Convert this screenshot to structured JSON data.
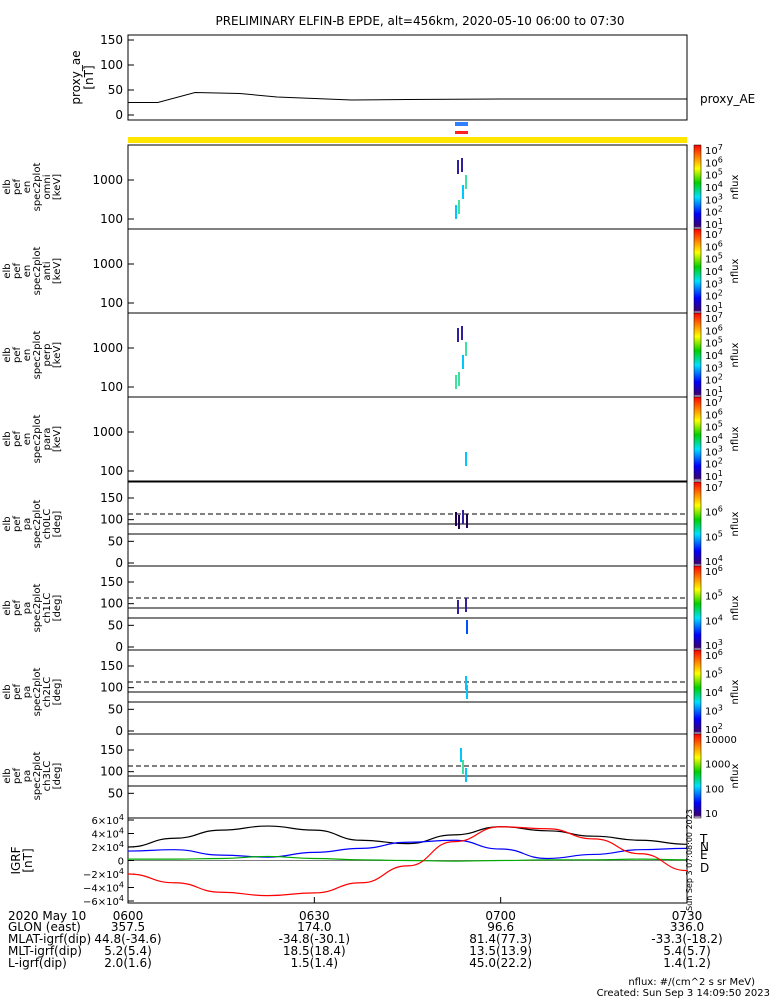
{
  "title": "PRELIMINARY ELFIN-B EPDE, alt=456km, 2020-05-10 06:00 to 07:30",
  "colors": {
    "line": "#000000",
    "status_yellow": "#FFE600",
    "blue_bar": "#2F7FFF",
    "red_bar": "#FF2020"
  },
  "chart_data": [
    {
      "type": "line",
      "panel": "proxy_ae",
      "ylabel": [
        "proxy_ae",
        "[nT]"
      ],
      "legend": "proxy_AE",
      "yticks": [
        "150",
        "100",
        "50",
        "0"
      ],
      "ylim": [
        0,
        150
      ],
      "x_hours": [
        6.0,
        6.08,
        6.18,
        6.3,
        6.4,
        6.5,
        6.6,
        6.75,
        7.0,
        7.5
      ],
      "values": [
        25,
        25,
        45,
        43,
        36,
        33,
        30,
        31,
        32,
        32
      ]
    },
    {
      "type": "heatmap",
      "panel": "omni",
      "ylabel": [
        "elb",
        "pef",
        "en",
        "spec2plot",
        "omni",
        "[keV]"
      ],
      "yticks": [
        "1000",
        "100"
      ],
      "colorbar": {
        "label": "nflux",
        "ticks": [
          "10^7",
          "10^6",
          "10^5",
          "10^4",
          "10^3",
          "10^2",
          "10^1"
        ]
      }
    },
    {
      "type": "heatmap",
      "panel": "anti",
      "ylabel": [
        "elb",
        "pef",
        "en",
        "spec2plot",
        "anti",
        "[keV]"
      ],
      "yticks": [
        "1000",
        "100"
      ],
      "colorbar": {
        "label": "nflux",
        "ticks": [
          "10^7",
          "10^6",
          "10^5",
          "10^4",
          "10^3",
          "10^2",
          "10^1"
        ]
      }
    },
    {
      "type": "heatmap",
      "panel": "perp",
      "ylabel": [
        "elb",
        "pef",
        "en",
        "spec2plot",
        "perp",
        "[keV]"
      ],
      "yticks": [
        "1000",
        "100"
      ],
      "colorbar": {
        "label": "nflux",
        "ticks": [
          "10^7",
          "10^6",
          "10^5",
          "10^4",
          "10^3",
          "10^2",
          "10^1"
        ]
      }
    },
    {
      "type": "heatmap",
      "panel": "para",
      "ylabel": [
        "elb",
        "pef",
        "en",
        "spec2plot",
        "para",
        "[keV]"
      ],
      "yticks": [
        "1000",
        "100"
      ],
      "colorbar": {
        "label": "nflux",
        "ticks": [
          "10^7",
          "10^6",
          "10^5",
          "10^4",
          "10^3",
          "10^2",
          "10^1"
        ]
      }
    },
    {
      "type": "heatmap",
      "panel": "ch0LC",
      "ylabel": [
        "elb",
        "pef",
        "pa",
        "spec2plot",
        "ch0LC",
        "[deg]"
      ],
      "yticks": [
        "150",
        "100",
        "50",
        "0"
      ],
      "colorbar": {
        "label": "nflux",
        "ticks": [
          "10^7",
          "10^6",
          "10^5",
          "10^4"
        ]
      }
    },
    {
      "type": "heatmap",
      "panel": "ch1LC",
      "ylabel": [
        "elb",
        "pef",
        "pa",
        "spec2plot",
        "ch1LC",
        "[deg]"
      ],
      "yticks": [
        "150",
        "100",
        "50",
        "0"
      ],
      "colorbar": {
        "label": "nflux",
        "ticks": [
          "10^6",
          "10^5",
          "10^4",
          "10^3"
        ]
      }
    },
    {
      "type": "heatmap",
      "panel": "ch2LC",
      "ylabel": [
        "elb",
        "pef",
        "pa",
        "spec2plot",
        "ch2LC",
        "[deg]"
      ],
      "yticks": [
        "150",
        "100",
        "50",
        "0"
      ],
      "colorbar": {
        "label": "nflux",
        "ticks": [
          "10^6",
          "10^5",
          "10^4",
          "10^3",
          "10^2"
        ]
      }
    },
    {
      "type": "heatmap",
      "panel": "ch3LC",
      "ylabel": [
        "elb",
        "pef",
        "pa",
        "spec2plot",
        "ch3LC",
        "[deg]"
      ],
      "yticks": [
        "150",
        "100",
        "50"
      ],
      "colorbar": {
        "label": "nflux",
        "ticks": [
          "10000",
          "1000",
          "100",
          "10"
        ]
      }
    },
    {
      "type": "line",
      "panel": "igrf",
      "ylabel": [
        "IGRF",
        "[nT]"
      ],
      "yticks": [
        "6×10^4",
        "4×10^4",
        "2×10^4",
        "0",
        "−2×10^4",
        "−4×10^4",
        "−6×10^4"
      ],
      "ylim": [
        -60000,
        60000
      ],
      "series": [
        {
          "name": "T",
          "color": "#000000"
        },
        {
          "name": "N",
          "color": "#0000FF"
        },
        {
          "name": "E",
          "color": "#00AA00"
        },
        {
          "name": "D",
          "color": "#FF0000"
        }
      ],
      "x_hours": [
        6.0,
        6.125,
        6.25,
        6.375,
        6.5,
        6.625,
        6.75,
        6.875,
        7.0,
        7.125,
        7.25,
        7.375,
        7.5
      ],
      "T": [
        20000,
        33000,
        45000,
        51000,
        45000,
        30000,
        25000,
        38000,
        50000,
        44000,
        36000,
        30000,
        24000
      ],
      "N": [
        14000,
        16000,
        8000,
        5000,
        12000,
        18000,
        27000,
        30000,
        17000,
        3000,
        9000,
        16000,
        18000
      ],
      "E": [
        2000,
        2000,
        3000,
        6000,
        3000,
        1000,
        0,
        -1000,
        0,
        1000,
        1000,
        2000,
        1000
      ],
      "D": [
        -20000,
        -33000,
        -47000,
        -52000,
        -48000,
        -33000,
        -8000,
        28000,
        50000,
        47000,
        32000,
        10000,
        -15000
      ]
    }
  ],
  "xaxis": {
    "row_labels": [
      "2020 May 10",
      "GLON (east)",
      "MLAT-igrf(dip)",
      "MLT-igrf(dip)",
      "L-igrf(dip)"
    ],
    "ticks": [
      {
        "time": "0600",
        "vals": [
          "357.5",
          "44.8(-34.6)",
          "5.2(5.4)",
          "2.0(1.6)"
        ]
      },
      {
        "time": "0630",
        "vals": [
          "174.0",
          "-34.8(-30.1)",
          "18.5(18.4)",
          "1.5(1.4)"
        ]
      },
      {
        "time": "0700",
        "vals": [
          "96.6",
          "81.4(77.3)",
          "13.5(13.9)",
          "45.0(22.2)"
        ]
      },
      {
        "time": "0730",
        "vals": [
          "336.0",
          "-33.3(-18.2)",
          "5.4(5.7)",
          "1.4(1.2)"
        ]
      }
    ]
  },
  "footer": {
    "units": "nflux: #/(cm^2 s sr MeV)",
    "created": "Created: Sun Sep  3 14:09:50 2023",
    "side_stamp": "Sun Sep  3 07:08:00 2023"
  }
}
